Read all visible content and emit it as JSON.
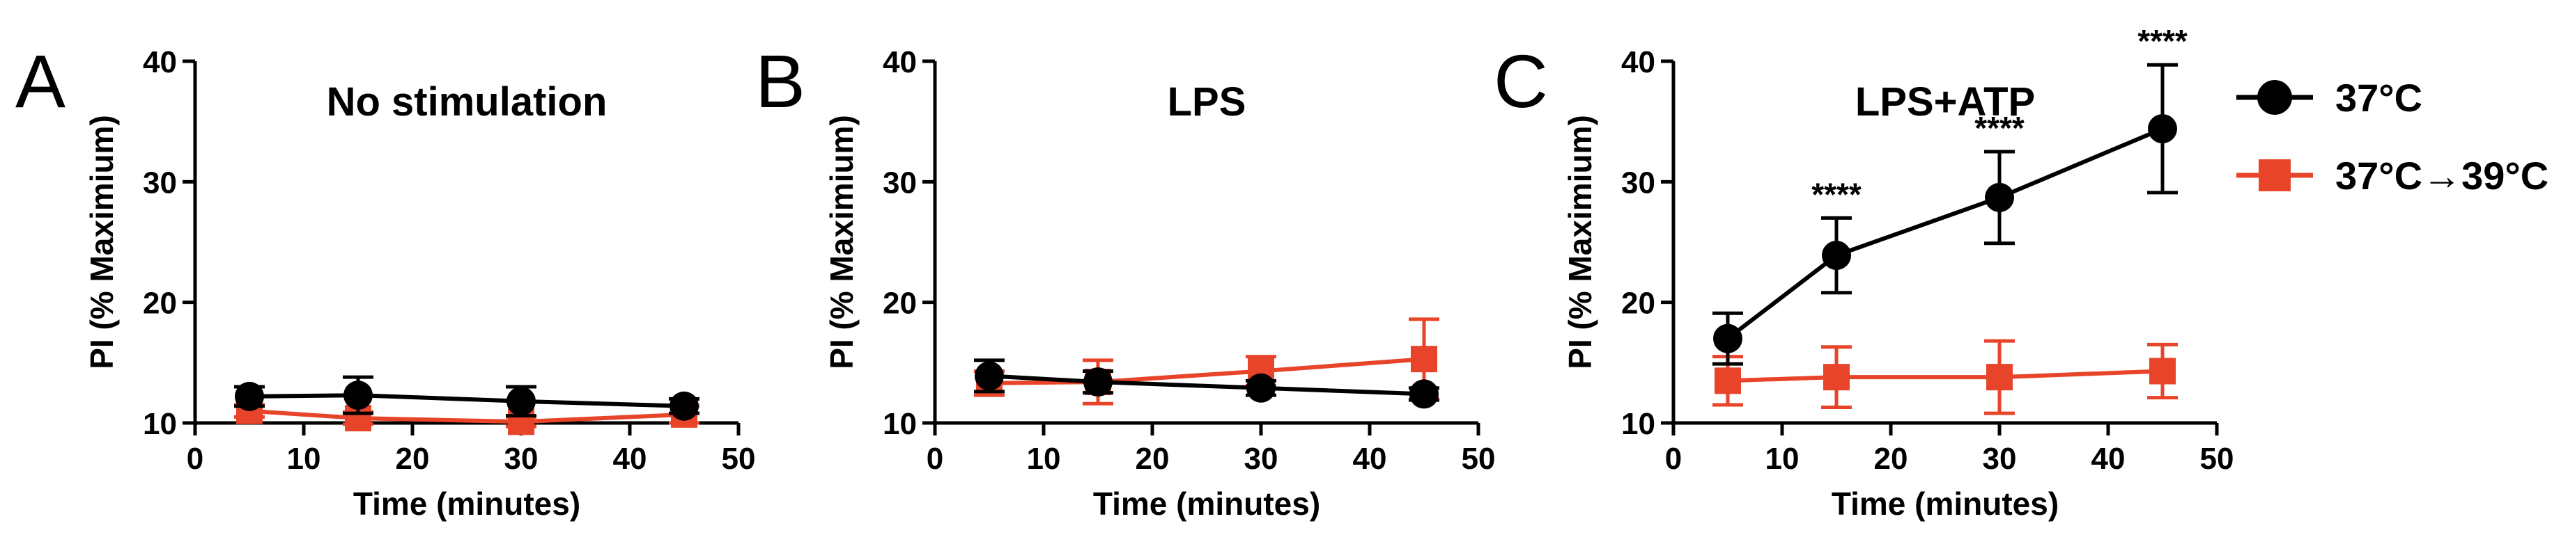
{
  "legend": {
    "entries": [
      {
        "label": "37°C",
        "color": "#000000",
        "marker": "circle"
      },
      {
        "label": "37°C→39°C",
        "color": "#e8442a",
        "marker": "square"
      }
    ]
  },
  "chart_data": [
    {
      "type": "line",
      "panel": "A",
      "title": "No stimulation",
      "xlabel": "Time (minutes)",
      "ylabel": "PI (% Maximium)",
      "xlim": [
        0,
        50
      ],
      "ylim": [
        10,
        40
      ],
      "xticks": [
        0,
        10,
        20,
        30,
        40,
        50
      ],
      "yticks": [
        10,
        20,
        30,
        40
      ],
      "x": [
        5,
        15,
        30,
        45
      ],
      "series": [
        {
          "name": "37°C",
          "color": "#000000",
          "marker": "circle",
          "values": [
            12.2,
            12.3,
            11.8,
            11.4
          ],
          "errors": [
            0.8,
            1.5,
            1.2,
            0.6
          ],
          "annotations": [
            "",
            "",
            "",
            ""
          ]
        },
        {
          "name": "37°C→39°C",
          "color": "#e8442a",
          "marker": "square",
          "values": [
            11.0,
            10.4,
            10.1,
            10.7
          ],
          "errors": [
            0.5,
            0.5,
            0.4,
            0.7
          ],
          "annotations": [
            "",
            "",
            "",
            ""
          ]
        }
      ]
    },
    {
      "type": "line",
      "panel": "B",
      "title": "LPS",
      "xlabel": "Time (minutes)",
      "ylabel": "PI (% Maximium)",
      "xlim": [
        0,
        50
      ],
      "ylim": [
        10,
        40
      ],
      "xticks": [
        0,
        10,
        20,
        30,
        40,
        50
      ],
      "yticks": [
        10,
        20,
        30,
        40
      ],
      "x": [
        5,
        15,
        30,
        45
      ],
      "series": [
        {
          "name": "37°C",
          "color": "#000000",
          "marker": "circle",
          "values": [
            13.9,
            13.4,
            12.9,
            12.4
          ],
          "errors": [
            1.3,
            0.9,
            0.6,
            0.5
          ],
          "annotations": [
            "",
            "",
            "",
            ""
          ]
        },
        {
          "name": "37°C→39°C",
          "color": "#e8442a",
          "marker": "square",
          "values": [
            13.3,
            13.4,
            14.3,
            15.3
          ],
          "errors": [
            1.0,
            1.8,
            1.2,
            3.3
          ],
          "annotations": [
            "",
            "",
            "",
            ""
          ]
        }
      ]
    },
    {
      "type": "line",
      "panel": "C",
      "title": "LPS+ATP",
      "xlabel": "Time (minutes)",
      "ylabel": "PI (% Maximium)",
      "xlim": [
        0,
        50
      ],
      "ylim": [
        10,
        40
      ],
      "xticks": [
        0,
        10,
        20,
        30,
        40,
        50
      ],
      "yticks": [
        10,
        20,
        30,
        40
      ],
      "x": [
        5,
        15,
        30,
        45
      ],
      "series": [
        {
          "name": "37°C",
          "color": "#000000",
          "marker": "circle",
          "values": [
            17.0,
            23.9,
            28.7,
            34.4
          ],
          "errors": [
            2.1,
            3.1,
            3.8,
            5.3
          ],
          "annotations": [
            "",
            "****",
            "****",
            "****"
          ]
        },
        {
          "name": "37°C→39°C",
          "color": "#e8442a",
          "marker": "square",
          "values": [
            13.5,
            13.8,
            13.8,
            14.3
          ],
          "errors": [
            2.0,
            2.5,
            3.0,
            2.2
          ],
          "annotations": [
            "",
            "",
            "",
            ""
          ]
        }
      ]
    }
  ]
}
